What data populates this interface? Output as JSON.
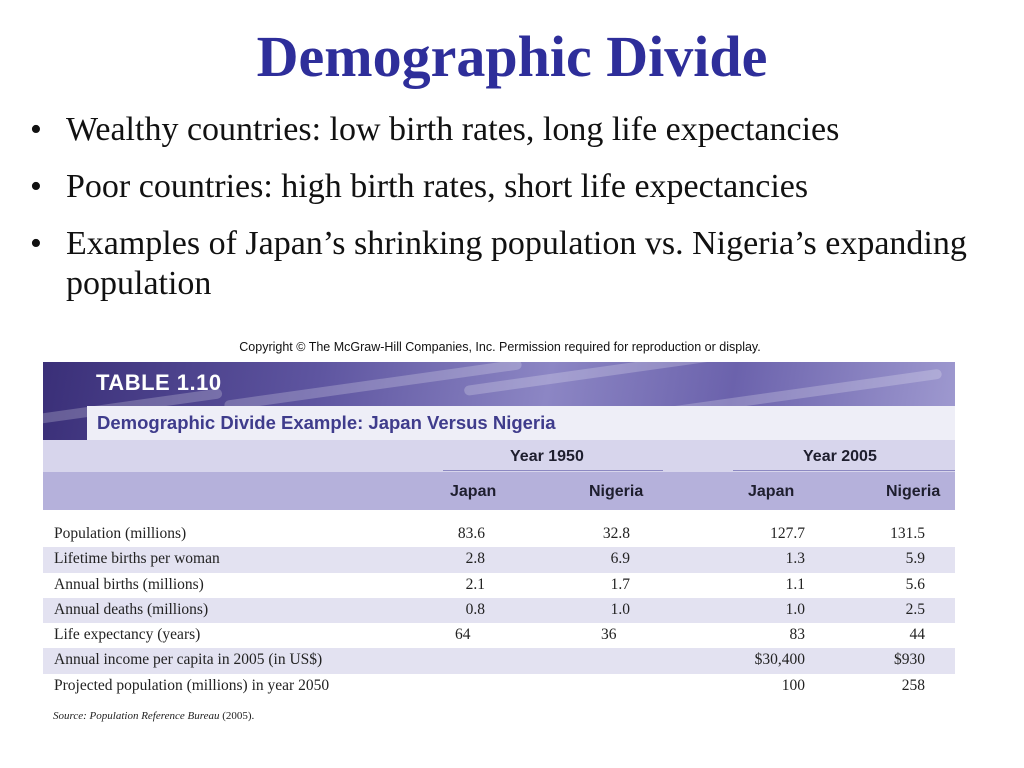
{
  "slide": {
    "title": "Demographic Divide",
    "bullets": [
      "Wealthy countries: low birth rates, long life expectancies",
      "Poor countries: high birth rates, short life expectancies",
      "Examples of Japan’s shrinking population vs. Nigeria’s expanding population"
    ],
    "bullet_symbol": "•"
  },
  "figure": {
    "copyright": "Copyright © The McGraw-Hill Companies, Inc. Permission required for reproduction or display.",
    "table_label": "TABLE 1.10",
    "table_title": "Demographic Divide Example: Japan Versus Nigeria",
    "year_headers": [
      "Year 1950",
      "Year 2005"
    ],
    "country_headers": [
      "Japan",
      "Nigeria",
      "Japan",
      "Nigeria"
    ],
    "rows": [
      {
        "label": "Population (millions)",
        "values": [
          "83.6",
          "32.8",
          "127.7",
          "131.5"
        ]
      },
      {
        "label": "Lifetime births per woman",
        "values": [
          "2.8",
          "6.9",
          "1.3",
          "5.9"
        ]
      },
      {
        "label": "Annual births (millions)",
        "values": [
          "2.1",
          "1.7",
          "1.1",
          "5.6"
        ]
      },
      {
        "label": "Annual deaths (millions)",
        "values": [
          "0.8",
          "1.0",
          "1.0",
          "2.5"
        ]
      },
      {
        "label": "Life expectancy (years)",
        "values": [
          "64",
          "36",
          "83",
          "44"
        ]
      },
      {
        "label": "Annual income per capita in 2005 (in US$)",
        "values": [
          "",
          "",
          "$30,400",
          "$930"
        ]
      },
      {
        "label": "Projected population (millions) in year 2050",
        "values": [
          "",
          "",
          "100",
          "258"
        ]
      }
    ],
    "source_prefix": "Source: Population Reference Bureau",
    "source_suffix": " (2005)."
  },
  "colors": {
    "title": "#2e2e9a",
    "banner": "#5e55a0",
    "header_row": "#b5b1db",
    "alt_row": "#e3e2f1"
  }
}
